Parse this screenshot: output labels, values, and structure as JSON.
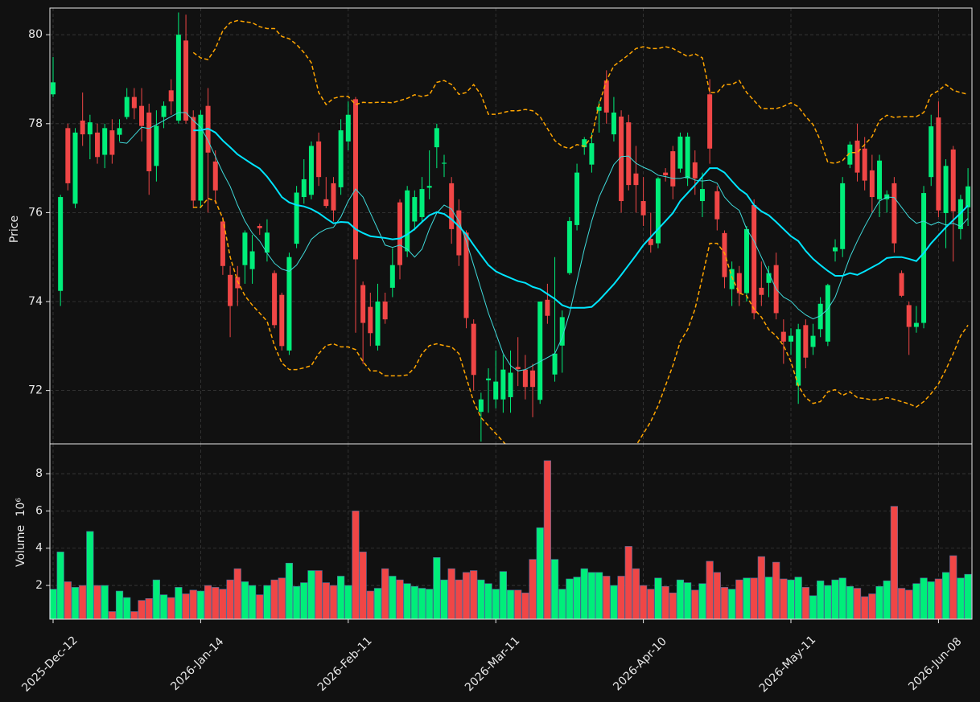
{
  "chart_data": {
    "type": "candlestick",
    "categories": [
      "2025-Dec-12",
      null,
      null,
      null,
      null,
      null,
      null,
      null,
      null,
      null,
      null,
      null,
      null,
      null,
      null,
      null,
      null,
      null,
      null,
      null,
      "2026-Jan-14",
      null,
      null,
      null,
      null,
      null,
      null,
      null,
      null,
      null,
      null,
      null,
      null,
      null,
      null,
      null,
      null,
      null,
      null,
      null,
      "2026-Feb-11",
      null,
      null,
      null,
      null,
      null,
      null,
      null,
      null,
      null,
      null,
      null,
      null,
      null,
      null,
      null,
      null,
      null,
      null,
      null,
      "2026-Mar-11",
      null,
      null,
      null,
      null,
      null,
      null,
      null,
      null,
      null,
      null,
      null,
      null,
      null,
      null,
      null,
      null,
      null,
      null,
      null,
      "2026-Apr-10",
      null,
      null,
      null,
      null,
      null,
      null,
      null,
      null,
      null,
      null,
      null,
      null,
      null,
      null,
      null,
      null,
      null,
      null,
      null,
      "2026-May-11",
      null,
      null,
      null,
      null,
      null,
      null,
      null,
      null,
      null,
      null,
      null,
      null,
      null,
      null,
      null,
      null,
      null,
      null,
      null,
      "2026-Jun-08",
      null,
      null,
      null,
      null
    ],
    "open": [
      78.66,
      74.24,
      77.9,
      76.2,
      78.07,
      77.76,
      77.8,
      77.3,
      77.85,
      77.75,
      78.15,
      78.6,
      78.4,
      78.25,
      77.05,
      78.15,
      78.75,
      78.07,
      79.87,
      78.15,
      76.27,
      78.4,
      77.15,
      75.8,
      74.6,
      74.55,
      74.82,
      74.73,
      75.7,
      75.1,
      74.64,
      74.15,
      72.9,
      75.3,
      76.35,
      76.4,
      77.6,
      76.3,
      76.66,
      76.57,
      77.6,
      78.55,
      74.37,
      73.88,
      73.01,
      74.0,
      74.31,
      76.23,
      75.13,
      75.8,
      75.9,
      76.56,
      77.47,
      77.1,
      76.66,
      76.05,
      75.55,
      73.5,
      71.52,
      72.23,
      71.8,
      71.8,
      71.85,
      72.53,
      72.47,
      72.45,
      71.79,
      74.04,
      72.36,
      73.01,
      74.64,
      75.72,
      77.47,
      77.08,
      78.29,
      78.97,
      77.76,
      78.16,
      78.03,
      76.88,
      76.26,
      75.41,
      75.31,
      76.9,
      77.38,
      76.99,
      76.77,
      77.13,
      76.26,
      78.66,
      76.48,
      75.54,
      74.28,
      74.64,
      74.19,
      76.17,
      74.31,
      74.42,
      74.82,
      73.32,
      73.1,
      72.11,
      73.47,
      72.98,
      73.38,
      73.1,
      75.13,
      75.18,
      77.08,
      77.62,
      77.44,
      76.95,
      76.3,
      76.3,
      76.66,
      74.64,
      73.92,
      73.43,
      73.52,
      76.8,
      78.14,
      75.99,
      77.42,
      75.63,
      76.12
    ],
    "high": [
      79.5,
      76.4,
      78,
      77.9,
      78.7,
      78.2,
      78,
      78,
      78.1,
      78.1,
      78.8,
      78.8,
      78.8,
      78.45,
      78.3,
      78.5,
      79,
      80.5,
      80.45,
      78.3,
      78.3,
      78.8,
      77.4,
      75.9,
      74.8,
      74.8,
      75.6,
      75.5,
      75.75,
      75.85,
      74.7,
      74.2,
      75.1,
      76.6,
      77.2,
      77.6,
      77.8,
      76.8,
      76.8,
      78.1,
      78.5,
      78.6,
      74.45,
      74.2,
      74.4,
      74.2,
      75.2,
      76.3,
      76.6,
      76.5,
      76.8,
      77.4,
      78,
      77.3,
      76.8,
      76.3,
      75.6,
      73.6,
      71.95,
      72.5,
      72.9,
      72.8,
      72.9,
      73.2,
      72.8,
      72.6,
      74.0,
      74.4,
      75.0,
      73.8,
      75.9,
      77.1,
      77.7,
      77.8,
      78.5,
      79.2,
      78.6,
      78.3,
      78.2,
      77.5,
      76.8,
      76,
      76.8,
      77,
      77.5,
      77.8,
      77.8,
      77.4,
      76.9,
      79.0,
      76.6,
      75.6,
      74.9,
      74.8,
      75.7,
      76.3,
      74.9,
      74.8,
      75.1,
      73.6,
      73.4,
      73.5,
      73.6,
      73.5,
      74.1,
      74.4,
      75.4,
      76.8,
      77.6,
      78.0,
      77.7,
      77.3,
      77.3,
      76.5,
      76.8,
      74.7,
      74.0,
      73.9,
      76.6,
      78.2,
      78.5,
      77.2,
      77.5,
      76.4,
      77.0
    ],
    "low": [
      78.6,
      73.9,
      76.5,
      76.1,
      77.5,
      77.2,
      77.1,
      77,
      77.1,
      77.6,
      78.1,
      78.1,
      77.6,
      76.4,
      76.7,
      77.9,
      78.2,
      78,
      78,
      76.1,
      76.1,
      76,
      76.2,
      74.6,
      73.2,
      73.9,
      74.4,
      74.4,
      75.5,
      74.9,
      73.4,
      72.9,
      72.8,
      75.2,
      76.2,
      76.3,
      76.6,
      76.1,
      75.8,
      76.4,
      77.4,
      73.3,
      72.6,
      73,
      72.9,
      73.5,
      74.1,
      74.5,
      75,
      75.6,
      75.8,
      76.3,
      77,
      76.8,
      75.3,
      74.8,
      73.4,
      72,
      70.85,
      71.5,
      71.6,
      71.5,
      71.5,
      72.1,
      71.8,
      71.4,
      71.7,
      73.5,
      72.2,
      72.4,
      74.6,
      75.6,
      77.3,
      76.9,
      77.8,
      78,
      77.6,
      76,
      76.5,
      76,
      75.7,
      75.1,
      75.2,
      76.7,
      76.3,
      76.9,
      76.6,
      76.4,
      75.9,
      77.1,
      75.6,
      74.3,
      73.9,
      73.9,
      74,
      73.6,
      73.9,
      74.1,
      73.6,
      72.6,
      72.8,
      71.7,
      72.5,
      72.8,
      73.2,
      73,
      74.9,
      75,
      77,
      76.7,
      76.5,
      76,
      75.9,
      76,
      75.1,
      74.1,
      72.8,
      73.3,
      73.4,
      76.6,
      75.9,
      75.2,
      74.9,
      75.4,
      75.7
    ],
    "close": [
      78.93,
      76.35,
      76.66,
      77.8,
      77.76,
      78.03,
      77.25,
      77.9,
      77.3,
      77.9,
      78.6,
      78.35,
      77.95,
      76.93,
      77.95,
      78.4,
      78.5,
      80.0,
      78.07,
      76.27,
      78.2,
      77.35,
      76.5,
      74.8,
      73.9,
      74.3,
      75.55,
      75.13,
      75.65,
      75.55,
      73.47,
      73.0,
      75.0,
      76.45,
      76.75,
      77.5,
      76.8,
      76.15,
      76.05,
      77.85,
      78.2,
      74.95,
      73.52,
      73.29,
      74.0,
      73.6,
      74.82,
      74.82,
      76.5,
      76.35,
      76.53,
      76.6,
      77.9,
      77.12,
      75.63,
      75.04,
      73.63,
      72.35,
      71.8,
      72.27,
      72.2,
      72.47,
      72.4,
      72.48,
      72.08,
      72.08,
      74.0,
      73.68,
      72.83,
      73.65,
      75.81,
      76.9,
      77.65,
      77.56,
      78.38,
      78.25,
      78.25,
      76.26,
      76.62,
      76.62,
      75.94,
      75.27,
      76.77,
      76.84,
      76.59,
      77.71,
      77.71,
      76.77,
      76.53,
      77.44,
      75.85,
      74.55,
      74.73,
      74.19,
      75.63,
      73.74,
      74.15,
      74.64,
      73.74,
      73.1,
      73.23,
      73.38,
      72.74,
      73.23,
      73.95,
      74.37,
      75.22,
      76.66,
      77.53,
      76.9,
      76.72,
      76.35,
      77.17,
      76.41,
      75.31,
      74.13,
      73.43,
      73.52,
      76.44,
      77.94,
      76.05,
      77.05,
      76.03,
      76.3,
      76.59
    ],
    "volume": [
      1.8,
      3.8,
      2.2,
      1.9,
      2.0,
      4.9,
      2.0,
      2.0,
      0.6,
      1.7,
      1.35,
      0.6,
      1.2,
      1.3,
      2.3,
      1.5,
      1.35,
      1.9,
      1.55,
      1.75,
      1.7,
      2.0,
      1.9,
      1.8,
      2.3,
      2.9,
      2.2,
      2.0,
      1.5,
      2.0,
      2.3,
      2.4,
      3.2,
      1.95,
      2.15,
      2.8,
      2.8,
      2.15,
      2.0,
      2.5,
      2.0,
      6.0,
      3.8,
      1.7,
      1.85,
      2.9,
      2.5,
      2.3,
      2.1,
      1.95,
      1.85,
      1.8,
      3.5,
      2.3,
      2.9,
      2.3,
      2.7,
      2.8,
      2.3,
      2.1,
      1.8,
      2.75,
      1.75,
      1.75,
      1.6,
      3.4,
      5.1,
      8.7,
      3.4,
      1.8,
      2.35,
      2.45,
      2.9,
      2.7,
      2.7,
      2.5,
      2.0,
      2.5,
      4.1,
      2.9,
      2.0,
      1.8,
      2.4,
      1.95,
      1.6,
      2.3,
      2.15,
      1.75,
      2.1,
      3.3,
      2.7,
      1.9,
      1.8,
      2.3,
      2.4,
      2.4,
      3.55,
      2.45,
      3.25,
      2.35,
      2.3,
      2.45,
      1.9,
      1.45,
      2.25,
      2.0,
      2.3,
      2.4,
      1.95,
      1.85,
      1.4,
      1.55,
      1.95,
      2.25,
      6.25,
      1.85,
      1.75,
      2.1,
      2.4,
      2.2,
      2.35,
      2.7,
      3.6,
      2.4,
      2.6
    ],
    "up_color": "#00ee7a",
    "down_color": "#f04646",
    "overlays": [
      {
        "color": "#3fd9d9",
        "width": 1,
        "dash": false,
        "values": [
          null,
          null,
          null,
          null,
          null,
          null,
          null,
          null,
          null,
          77.58,
          77.56,
          77.74,
          77.92,
          77.89,
          77.98,
          78.07,
          78.16,
          78.25,
          78.25,
          78.07,
          77.92,
          77.62,
          77.26,
          76.9,
          76.59,
          76.17,
          75.81,
          75.54,
          75.36,
          75.09,
          74.86,
          74.73,
          74.68,
          74.82,
          75.09,
          75.4,
          75.54,
          75.63,
          75.67,
          75.9,
          76.26,
          76.53,
          76.35,
          75.99,
          75.63,
          75.27,
          75.22,
          75.27,
          75.18,
          75.0,
          75.18,
          75.63,
          75.99,
          76.17,
          76.08,
          75.81,
          75.36,
          74.82,
          74.28,
          73.74,
          73.29,
          72.83,
          72.56,
          72.44,
          72.47,
          72.56,
          72.65,
          72.74,
          72.83,
          73.19,
          73.74,
          74.46,
          75.18,
          75.81,
          76.35,
          76.71,
          77.08,
          77.26,
          77.27,
          77.11,
          77.02,
          76.95,
          76.84,
          76.81,
          76.77,
          76.77,
          76.81,
          76.73,
          76.71,
          76.73,
          76.66,
          76.35,
          76.17,
          76.05,
          75.63,
          75.36,
          75.0,
          74.64,
          74.28,
          74.1,
          74.01,
          73.83,
          73.7,
          73.61,
          73.68,
          73.83,
          74.1,
          74.55,
          75.0,
          75.36,
          75.69,
          75.99,
          76.26,
          76.35,
          76.34,
          76.12,
          75.9,
          75.76,
          75.81,
          75.72,
          75.79,
          75.72,
          75.76,
          75.69,
          75.87
        ]
      },
      {
        "color": "#00e5ff",
        "width": 2,
        "dash": false,
        "values": [
          null,
          null,
          null,
          null,
          null,
          null,
          null,
          null,
          null,
          null,
          null,
          null,
          null,
          null,
          null,
          null,
          null,
          null,
          null,
          77.85,
          77.85,
          77.89,
          77.8,
          77.62,
          77.47,
          77.31,
          77.2,
          77.09,
          76.99,
          76.81,
          76.59,
          76.35,
          76.23,
          76.17,
          76.14,
          76.08,
          75.99,
          75.87,
          75.76,
          75.79,
          75.78,
          75.63,
          75.54,
          75.47,
          75.45,
          75.43,
          75.4,
          75.42,
          75.51,
          75.63,
          75.79,
          75.94,
          76.01,
          75.97,
          75.85,
          75.69,
          75.51,
          75.27,
          75.04,
          74.82,
          74.68,
          74.6,
          74.53,
          74.46,
          74.42,
          74.33,
          74.28,
          74.17,
          74.06,
          73.92,
          73.86,
          73.86,
          73.86,
          73.88,
          74.03,
          74.21,
          74.39,
          74.6,
          74.82,
          75.04,
          75.27,
          75.45,
          75.63,
          75.81,
          75.99,
          76.26,
          76.44,
          76.62,
          76.81,
          77.0,
          77.0,
          76.9,
          76.71,
          76.53,
          76.41,
          76.17,
          76.03,
          75.94,
          75.79,
          75.63,
          75.47,
          75.36,
          75.14,
          74.96,
          74.82,
          74.69,
          74.58,
          74.58,
          74.64,
          74.6,
          74.68,
          74.77,
          74.86,
          74.98,
          75.0,
          75.0,
          74.96,
          74.91,
          75.09,
          75.31,
          75.49,
          75.67,
          75.83,
          75.99,
          76.16
        ]
      },
      {
        "color": "#ffa500",
        "width": 1.5,
        "dash": true,
        "values": [
          null,
          null,
          null,
          null,
          null,
          null,
          null,
          null,
          null,
          null,
          null,
          null,
          null,
          null,
          null,
          null,
          null,
          null,
          null,
          79.6,
          79.48,
          79.44,
          79.69,
          80.09,
          80.27,
          80.32,
          80.29,
          80.27,
          80.18,
          80.14,
          80.14,
          79.96,
          79.91,
          79.78,
          79.6,
          79.37,
          78.7,
          78.43,
          78.57,
          78.61,
          78.61,
          78.43,
          78.48,
          78.47,
          78.48,
          78.48,
          78.47,
          78.52,
          78.57,
          78.65,
          78.61,
          78.65,
          78.93,
          78.97,
          78.88,
          78.66,
          78.7,
          78.88,
          78.65,
          78.21,
          78.21,
          78.25,
          78.29,
          78.29,
          78.32,
          78.29,
          78.16,
          77.89,
          77.62,
          77.49,
          77.44,
          77.53,
          77.49,
          77.71,
          78.43,
          78.97,
          79.3,
          79.42,
          79.55,
          79.69,
          79.73,
          79.69,
          79.69,
          79.73,
          79.69,
          79.6,
          79.51,
          79.57,
          79.48,
          78.7,
          78.7,
          78.88,
          78.88,
          78.97,
          78.7,
          78.52,
          78.34,
          78.34,
          78.34,
          78.39,
          78.47,
          78.38,
          78.16,
          77.98,
          77.62,
          77.13,
          77.11,
          77.17,
          77.35,
          77.35,
          77.53,
          77.71,
          78.07,
          78.19,
          78.14,
          78.16,
          78.16,
          78.16,
          78.25,
          78.65,
          78.74,
          78.88,
          78.75,
          78.7,
          78.66
        ]
      },
      {
        "color": "#ffa500",
        "width": 1.5,
        "dash": true,
        "values": [
          null,
          null,
          null,
          null,
          null,
          null,
          null,
          null,
          null,
          null,
          null,
          null,
          null,
          null,
          null,
          null,
          null,
          null,
          null,
          76.12,
          76.12,
          76.32,
          76.26,
          75.87,
          75.0,
          74.46,
          74.13,
          73.92,
          73.74,
          73.56,
          73.01,
          72.62,
          72.47,
          72.47,
          72.51,
          72.56,
          72.83,
          73.01,
          73.05,
          72.98,
          72.98,
          72.92,
          72.65,
          72.44,
          72.44,
          72.33,
          72.33,
          72.33,
          72.35,
          72.51,
          72.83,
          73.01,
          73.05,
          73.01,
          72.98,
          72.83,
          72.29,
          71.75,
          71.39,
          71.21,
          71.03,
          70.85,
          70.67,
          70.49,
          70.31,
          70.13,
          69.95,
          69.77,
          69.67,
          69.67,
          69.77,
          69.86,
          69.95,
          70.04,
          70.22,
          70.4,
          70.49,
          70.58,
          70.67,
          70.76,
          71.03,
          71.3,
          71.66,
          72.11,
          72.56,
          73.1,
          73.37,
          73.83,
          74.55,
          75.31,
          75.31,
          75.09,
          74.55,
          74.19,
          74.13,
          73.83,
          73.65,
          73.37,
          73.23,
          73.01,
          72.65,
          72.11,
          71.84,
          71.71,
          71.75,
          71.97,
          72.02,
          71.89,
          71.97,
          71.84,
          71.82,
          71.79,
          71.8,
          71.84,
          71.8,
          71.75,
          71.7,
          71.63,
          71.75,
          71.93,
          72.15,
          72.47,
          72.83,
          73.23,
          73.47
        ]
      }
    ],
    "ylabel": "Price",
    "ylim": [
      70.8,
      80.6
    ],
    "yticks": [
      72,
      74,
      76,
      78,
      80
    ],
    "volume_label": "Volume",
    "volume_scale": "10⁶",
    "volume_ylim": [
      0.19,
      9.6
    ],
    "volume_yticks": [
      2,
      4,
      6,
      8
    ],
    "grid": true
  }
}
